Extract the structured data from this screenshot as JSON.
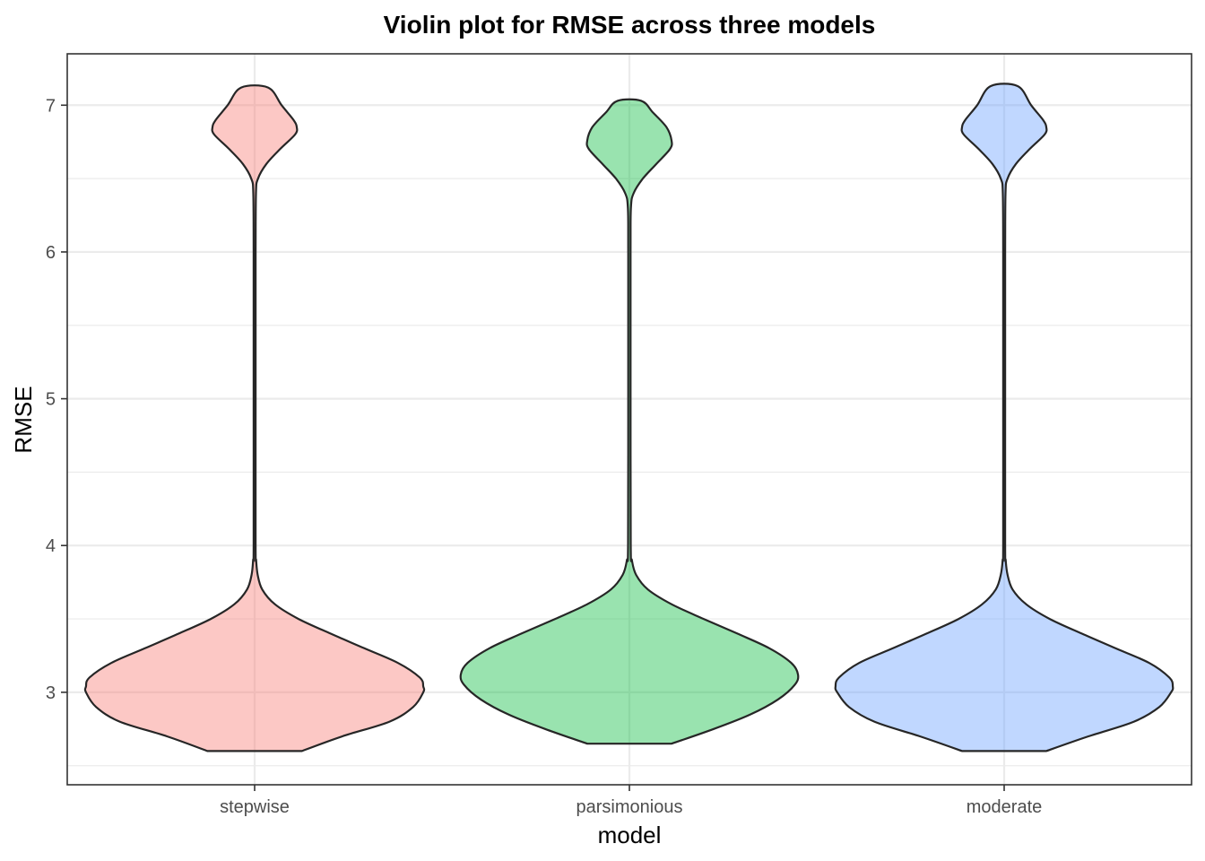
{
  "chart_data": {
    "type": "violin",
    "title": "Violin plot for RMSE across three models",
    "xlabel": "model",
    "ylabel": "RMSE",
    "ylim": [
      2.37,
      7.35
    ],
    "yticks": [
      3,
      4,
      5,
      6,
      7
    ],
    "grid": true,
    "categories": [
      "stepwise",
      "parsimonious",
      "moderate"
    ],
    "colors": [
      "#F8766D",
      "#00BA38",
      "#619CFF"
    ],
    "series": [
      {
        "name": "stepwise",
        "min": 2.6,
        "max": 7.12,
        "profile": [
          [
            2.6,
            0.28
          ],
          [
            2.7,
            0.52
          ],
          [
            2.8,
            0.8
          ],
          [
            2.9,
            0.94
          ],
          [
            3.0,
            1.0
          ],
          [
            3.04,
            1.0
          ],
          [
            3.1,
            0.98
          ],
          [
            3.2,
            0.85
          ],
          [
            3.3,
            0.65
          ],
          [
            3.4,
            0.45
          ],
          [
            3.5,
            0.26
          ],
          [
            3.6,
            0.12
          ],
          [
            3.7,
            0.045
          ],
          [
            3.8,
            0.018
          ],
          [
            3.9,
            0.009
          ],
          [
            4.0,
            0.006
          ],
          [
            5.0,
            0.006
          ],
          [
            6.0,
            0.006
          ],
          [
            6.4,
            0.008
          ],
          [
            6.5,
            0.02
          ],
          [
            6.6,
            0.07
          ],
          [
            6.7,
            0.15
          ],
          [
            6.8,
            0.24
          ],
          [
            6.85,
            0.25
          ],
          [
            6.9,
            0.23
          ],
          [
            7.0,
            0.16
          ],
          [
            7.12,
            0.08
          ]
        ]
      },
      {
        "name": "parsimonious",
        "min": 2.65,
        "max": 7.03,
        "profile": [
          [
            2.65,
            0.25
          ],
          [
            2.75,
            0.5
          ],
          [
            2.85,
            0.72
          ],
          [
            2.95,
            0.88
          ],
          [
            3.05,
            0.98
          ],
          [
            3.12,
            1.0
          ],
          [
            3.2,
            0.96
          ],
          [
            3.3,
            0.83
          ],
          [
            3.4,
            0.64
          ],
          [
            3.5,
            0.44
          ],
          [
            3.6,
            0.25
          ],
          [
            3.7,
            0.11
          ],
          [
            3.8,
            0.04
          ],
          [
            3.9,
            0.015
          ],
          [
            4.0,
            0.008
          ],
          [
            5.0,
            0.007
          ],
          [
            6.0,
            0.007
          ],
          [
            6.3,
            0.009
          ],
          [
            6.4,
            0.025
          ],
          [
            6.5,
            0.08
          ],
          [
            6.6,
            0.16
          ],
          [
            6.7,
            0.24
          ],
          [
            6.76,
            0.25
          ],
          [
            6.85,
            0.22
          ],
          [
            6.95,
            0.14
          ],
          [
            7.03,
            0.07
          ]
        ]
      },
      {
        "name": "moderate",
        "min": 2.6,
        "max": 7.13,
        "profile": [
          [
            2.6,
            0.25
          ],
          [
            2.7,
            0.5
          ],
          [
            2.8,
            0.77
          ],
          [
            2.9,
            0.92
          ],
          [
            3.0,
            0.99
          ],
          [
            3.04,
            1.0
          ],
          [
            3.1,
            0.98
          ],
          [
            3.2,
            0.86
          ],
          [
            3.3,
            0.66
          ],
          [
            3.4,
            0.46
          ],
          [
            3.5,
            0.27
          ],
          [
            3.6,
            0.13
          ],
          [
            3.7,
            0.05
          ],
          [
            3.8,
            0.02
          ],
          [
            3.9,
            0.009
          ],
          [
            4.0,
            0.006
          ],
          [
            5.0,
            0.006
          ],
          [
            6.0,
            0.006
          ],
          [
            6.4,
            0.008
          ],
          [
            6.5,
            0.02
          ],
          [
            6.6,
            0.07
          ],
          [
            6.7,
            0.15
          ],
          [
            6.8,
            0.24
          ],
          [
            6.85,
            0.25
          ],
          [
            6.9,
            0.23
          ],
          [
            7.0,
            0.16
          ],
          [
            7.13,
            0.08
          ]
        ]
      }
    ]
  }
}
